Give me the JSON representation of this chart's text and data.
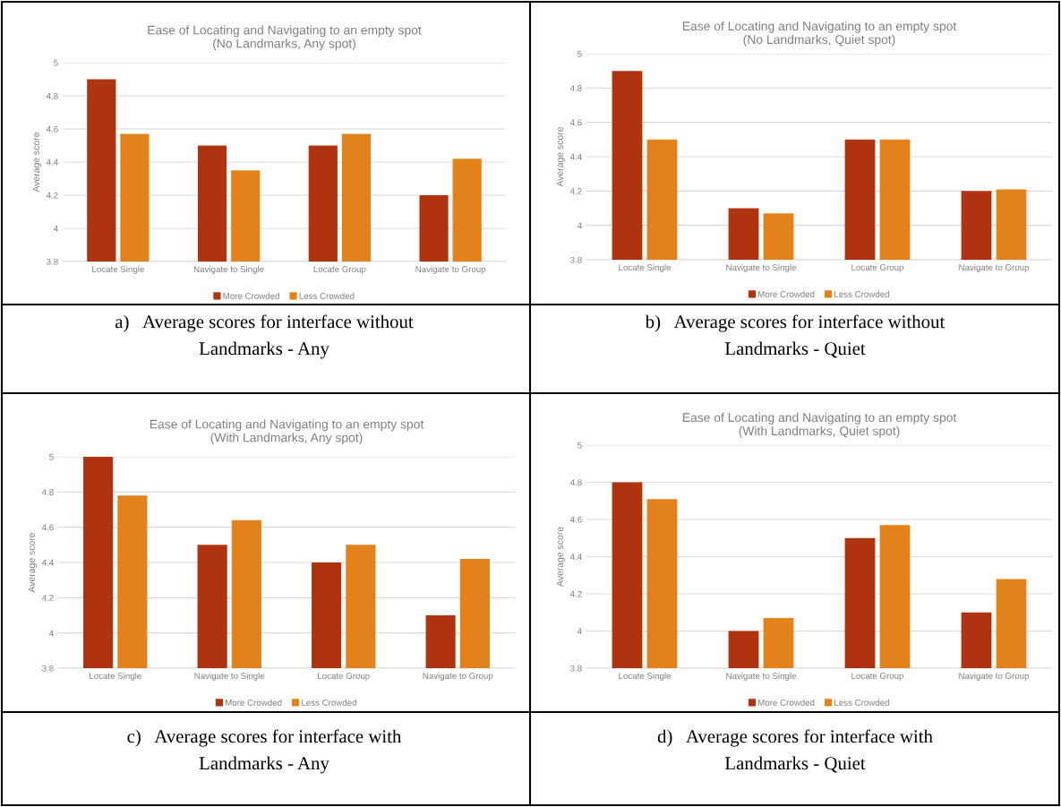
{
  "chart_data": [
    {
      "type": "bar",
      "title": "Ease of Locating and Navigating to an empty spot",
      "subtitle": "(No Landmarks, Any spot)",
      "ylabel": "Average score",
      "categories": [
        "Locate Single",
        "Navigate to Single",
        "Locate Group",
        "Navigate to Group"
      ],
      "series": [
        {
          "name": "More Crowded",
          "color": "#b0330f",
          "values": [
            4.9,
            4.5,
            4.5,
            4.2
          ]
        },
        {
          "name": "Less Crowded",
          "color": "#e3821a",
          "values": [
            4.57,
            4.35,
            4.57,
            4.42
          ]
        }
      ],
      "ylim": [
        3.8,
        5
      ],
      "yticks": [
        3.8,
        4,
        4.2,
        4.4,
        4.6,
        4.8,
        5
      ],
      "grid": "y",
      "legend": "bottom",
      "annotations": [
        "a)   Average scores for interface without Landmarks - Any"
      ]
    },
    {
      "type": "bar",
      "title": "Ease of Locating and Navigating to an empty spot",
      "subtitle": "(No Landmarks, Quiet spot)",
      "ylabel": "Average score",
      "categories": [
        "Locate Single",
        "Navigate to Single",
        "Locate Group",
        "Navigate to Group"
      ],
      "series": [
        {
          "name": "More Crowded",
          "color": "#b0330f",
          "values": [
            4.9,
            4.1,
            4.5,
            4.2
          ]
        },
        {
          "name": "Less Crowded",
          "color": "#e3821a",
          "values": [
            4.5,
            4.07,
            4.5,
            4.21
          ]
        }
      ],
      "ylim": [
        3.8,
        5
      ],
      "yticks": [
        3.8,
        4,
        4.2,
        4.4,
        4.6,
        4.8,
        5
      ],
      "grid": "y",
      "legend": "bottom",
      "annotations": [
        "b)   Average scores for interface without Landmarks - Quiet"
      ]
    },
    {
      "type": "bar",
      "title": "Ease of Locating and Navigating to an empty spot",
      "subtitle": "(With Landmarks, Any spot)",
      "ylabel": "Average score",
      "categories": [
        "Locate Single",
        "Navigate to Single",
        "Locate Group",
        "Navigate to Group"
      ],
      "series": [
        {
          "name": "More Crowded",
          "color": "#b0330f",
          "values": [
            5,
            4.5,
            4.4,
            4.1
          ]
        },
        {
          "name": "Less Crowded",
          "color": "#e3821a",
          "values": [
            4.78,
            4.64,
            4.5,
            4.42
          ]
        }
      ],
      "ylim": [
        3.8,
        5
      ],
      "yticks": [
        3.8,
        4,
        4.2,
        4.4,
        4.6,
        4.8,
        5
      ],
      "grid": "y",
      "legend": "bottom",
      "annotations": [
        "c)   Average scores for interface with Landmarks - Any"
      ]
    },
    {
      "type": "bar",
      "title": "Ease of Locating and Navigating to an empty spot",
      "subtitle": "(With Landmarks, Quiet spot)",
      "ylabel": "Average score",
      "categories": [
        "Locate Single",
        "Navigate to Single",
        "Locate Group",
        "Navigate to Group"
      ],
      "series": [
        {
          "name": "More Crowded",
          "color": "#b0330f",
          "values": [
            4.8,
            4.0,
            4.5,
            4.1
          ]
        },
        {
          "name": "Less Crowded",
          "color": "#e3821a",
          "values": [
            4.71,
            4.07,
            4.57,
            4.28
          ]
        }
      ],
      "ylim": [
        3.8,
        5
      ],
      "yticks": [
        3.8,
        4,
        4.2,
        4.4,
        4.6,
        4.8,
        5
      ],
      "grid": "y",
      "legend": "bottom",
      "annotations": [
        "d)   Average scores for interface with Landmarks - Quiet"
      ]
    }
  ]
}
